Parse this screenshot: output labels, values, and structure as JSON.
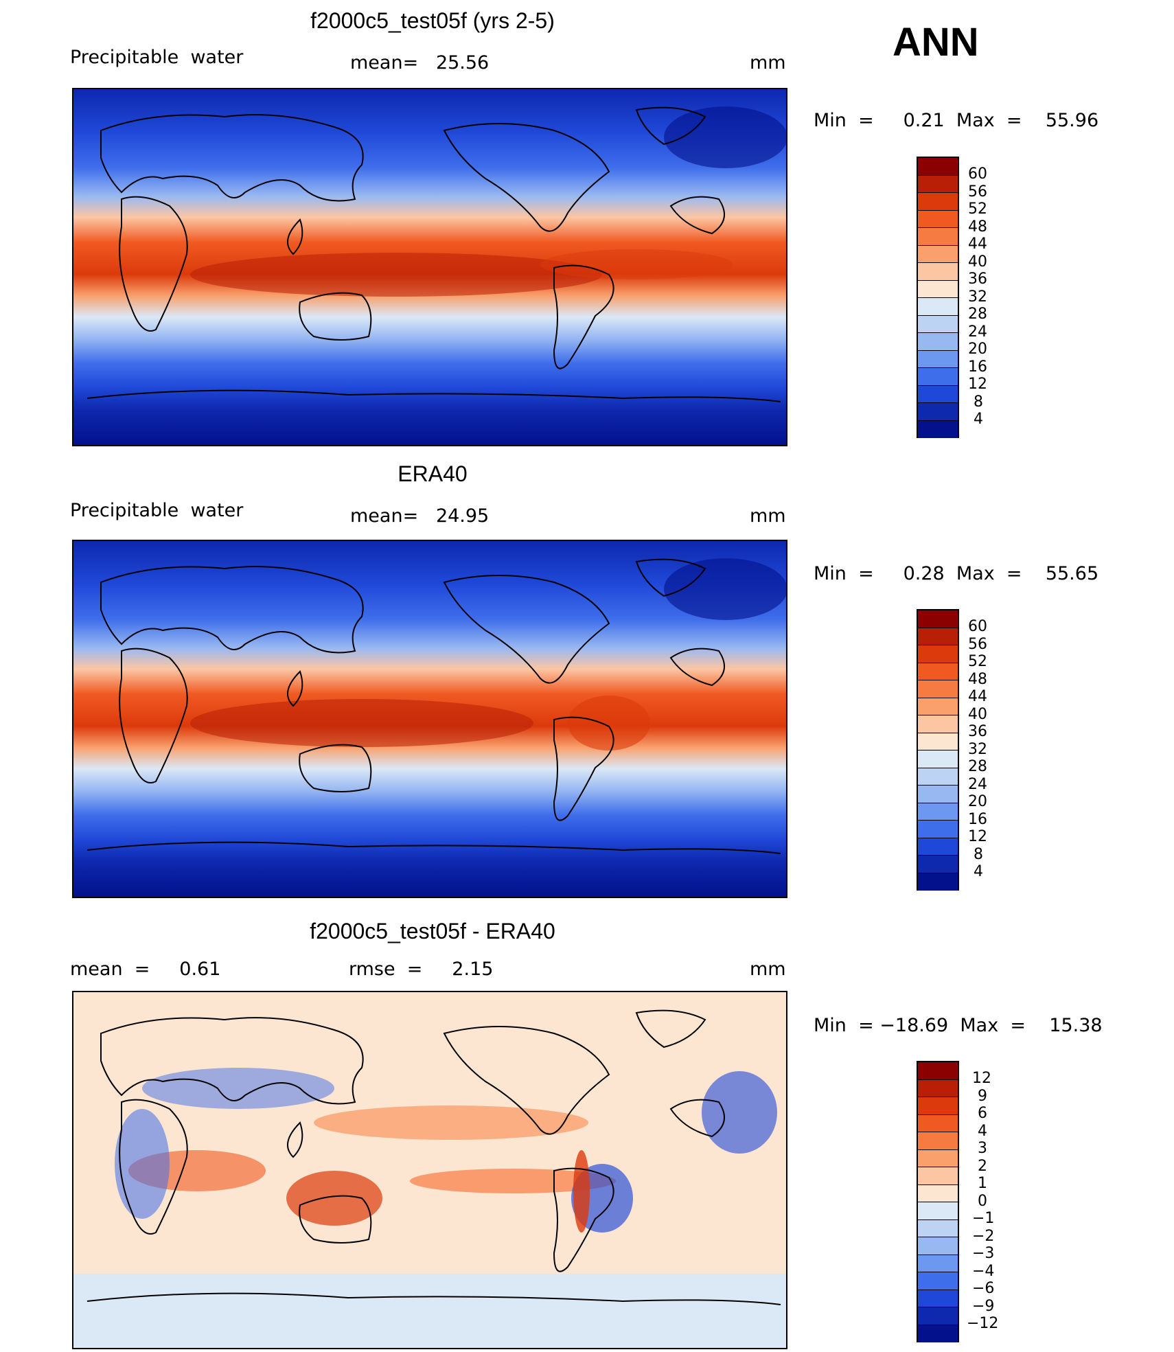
{
  "season": "ANN",
  "panels": [
    {
      "title": "f2000c5_test05f (yrs 2-5)",
      "left_label": "Precipitable  water",
      "center_label": "mean=   25.56",
      "units": "mm",
      "minmax": "Min  =     0.21  Max  =    55.96",
      "colorbar": {
        "labels": [
          "60",
          "56",
          "52",
          "48",
          "44",
          "40",
          "36",
          "32",
          "28",
          "24",
          "20",
          "16",
          "12",
          "8",
          "4"
        ],
        "colors": [
          "#8b0000",
          "#b81f06",
          "#dc3a0c",
          "#f05a22",
          "#f67b42",
          "#f9a06d",
          "#fcc6a3",
          "#fde6d1",
          "#dbe8f6",
          "#bcd3f4",
          "#98b8f2",
          "#6d98ef",
          "#3f6eeb",
          "#1f48d8",
          "#0e28ae",
          "#03118c"
        ]
      }
    },
    {
      "title": "ERA40",
      "left_label": "Precipitable  water",
      "center_label": "mean=   24.95",
      "units": "mm",
      "minmax": "Min  =     0.28  Max  =    55.65",
      "colorbar": {
        "labels": [
          "60",
          "56",
          "52",
          "48",
          "44",
          "40",
          "36",
          "32",
          "28",
          "24",
          "20",
          "16",
          "12",
          "8",
          "4"
        ],
        "colors": [
          "#8b0000",
          "#b81f06",
          "#dc3a0c",
          "#f05a22",
          "#f67b42",
          "#f9a06d",
          "#fcc6a3",
          "#fde6d1",
          "#dbe8f6",
          "#bcd3f4",
          "#98b8f2",
          "#6d98ef",
          "#3f6eeb",
          "#1f48d8",
          "#0e28ae",
          "#03118c"
        ]
      }
    },
    {
      "title": "f2000c5_test05f - ERA40",
      "left_label": "mean  =     0.61",
      "center_label": "rmse  =     2.15",
      "units": "mm",
      "minmax": "Min  = −18.69  Max  =    15.38",
      "colorbar": {
        "labels": [
          "12",
          "9",
          "6",
          "4",
          "3",
          "2",
          "1",
          "0",
          "−1",
          "−2",
          "−3",
          "−4",
          "−6",
          "−9",
          "−12"
        ],
        "colors": [
          "#8b0000",
          "#b81f06",
          "#dc3a0c",
          "#f05a22",
          "#f67b42",
          "#f9a06d",
          "#fcc6a3",
          "#fde6d1",
          "#dbe8f6",
          "#bcd3f4",
          "#98b8f2",
          "#6d98ef",
          "#3f6eeb",
          "#1f48d8",
          "#0e28ae",
          "#03118c"
        ]
      }
    }
  ]
}
